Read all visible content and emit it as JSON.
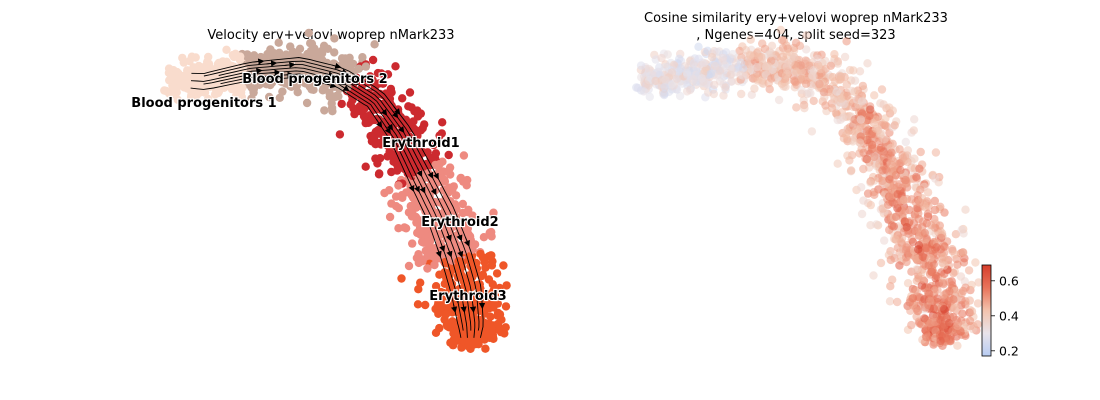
{
  "colors": {
    "blood_progenitors_1": "#f9dccd",
    "blood_progenitors_2": "#c9a89a",
    "erythroid1": "#cc2a2f",
    "erythroid2": "#ee8a80",
    "erythroid3": "#ef5628",
    "colormap": [
      "#b8cdf3",
      "#e8e3ea",
      "#f3c3ad",
      "#e8735a",
      "#d63e2c"
    ]
  },
  "chart_data": [
    {
      "type": "scatter",
      "title": "Velocity ery+velovi woprep nMark233",
      "clusters": [
        {
          "name": "Blood progenitors 1",
          "label": "Blood progenitors 1"
        },
        {
          "name": "Blood progenitors 2",
          "label": "Blood progenitors 2"
        },
        {
          "name": "Erythroid1",
          "label": "Erythroid1"
        },
        {
          "name": "Erythroid2",
          "label": "Erythroid2"
        },
        {
          "name": "Erythroid3",
          "label": "Erythroid3"
        }
      ],
      "overlay": "velocity streamlines with arrows",
      "axes": "off"
    },
    {
      "type": "scatter",
      "title_line1": "Cosine similarity ery+velovi woprep nMark233",
      "title_line2": ", Ngenes=404, split seed=323",
      "colorbar": {
        "ticks": [
          "0.2",
          "0.4",
          "0.6"
        ],
        "range": [
          0.17,
          0.69
        ]
      },
      "axes": "off"
    }
  ]
}
